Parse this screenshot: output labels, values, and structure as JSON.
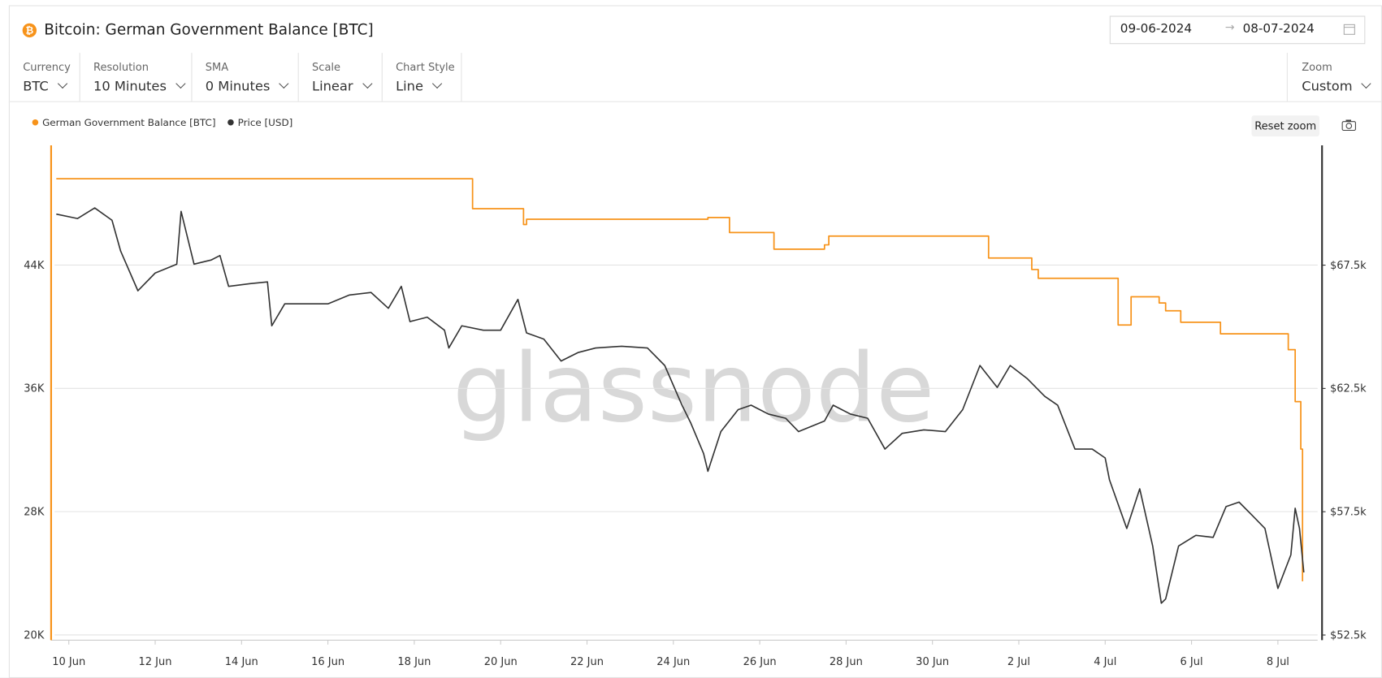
{
  "header": {
    "title": "Bitcoin: German Government Balance [BTC]",
    "date_from": "09-06-2024",
    "date_to": "08-07-2024"
  },
  "controls": [
    {
      "label": "Currency",
      "value": "BTC"
    },
    {
      "label": "Resolution",
      "value": "10 Minutes"
    },
    {
      "label": "SMA",
      "value": "0 Minutes"
    },
    {
      "label": "Scale",
      "value": "Linear"
    },
    {
      "label": "Chart Style",
      "value": "Line"
    }
  ],
  "zoom": {
    "label": "Zoom",
    "value": "Custom"
  },
  "reset_zoom": "Reset zoom",
  "watermark": "glassnode",
  "chart_data": {
    "type": "line",
    "xlim": [
      9.59,
      38.92
    ],
    "xticks": [
      {
        "value": 10,
        "label": "10 Jun"
      },
      {
        "value": 12,
        "label": "12 Jun"
      },
      {
        "value": 14,
        "label": "14 Jun"
      },
      {
        "value": 16,
        "label": "16 Jun"
      },
      {
        "value": 18,
        "label": "18 Jun"
      },
      {
        "value": 20,
        "label": "20 Jun"
      },
      {
        "value": 22,
        "label": "22 Jun"
      },
      {
        "value": 24,
        "label": "24 Jun"
      },
      {
        "value": 26,
        "label": "26 Jun"
      },
      {
        "value": 28,
        "label": "28 Jun"
      },
      {
        "value": 30,
        "label": "30 Jun"
      },
      {
        "value": 32,
        "label": "2 Jul"
      },
      {
        "value": 34,
        "label": "4 Jul"
      },
      {
        "value": 36,
        "label": "6 Jul"
      },
      {
        "value": 38,
        "label": "8 Jul"
      }
    ],
    "ylim": [
      19660,
      51770
    ],
    "yticks": [
      {
        "value": 20000,
        "label": "20K"
      },
      {
        "value": 28000,
        "label": "28K"
      },
      {
        "value": 36000,
        "label": "36K"
      },
      {
        "value": 44000,
        "label": "44K"
      }
    ],
    "y2lim": [
      52290,
      72360
    ],
    "y2ticks": [
      {
        "value": 52500,
        "label": "$52.5k"
      },
      {
        "value": 57500,
        "label": "$57.5k"
      },
      {
        "value": 62500,
        "label": "$62.5k"
      },
      {
        "value": 67500,
        "label": "$67.5k"
      }
    ],
    "grid": true,
    "series": [
      {
        "name": "German Government Balance [BTC]",
        "color": "#f7931a",
        "step": true,
        "x": [
          9.71,
          19.35,
          20.53,
          20.6,
          24.8,
          25.3,
          26.33,
          27.5,
          27.6,
          31.3,
          32.3,
          32.45,
          34.3,
          34.6,
          35.25,
          35.4,
          35.75,
          36.67,
          38.24,
          38.4,
          38.53,
          38.57
        ],
        "values": [
          49600,
          47660,
          46630,
          46970,
          47085,
          46110,
          45030,
          45310,
          45880,
          44460,
          43710,
          43140,
          40110,
          41940,
          41540,
          41030,
          40290,
          39540,
          38510,
          35140,
          32060,
          23480
        ]
      },
      {
        "name": "Price [USD]",
        "color": "#333333",
        "axis": "y2",
        "x": [
          9.71,
          10.2,
          10.6,
          11.0,
          11.2,
          11.6,
          12.0,
          12.5,
          12.6,
          12.9,
          13.3,
          13.5,
          13.7,
          14.2,
          14.6,
          14.7,
          15.0,
          15.5,
          16.0,
          16.5,
          17.0,
          17.4,
          17.7,
          17.9,
          18.3,
          18.7,
          18.8,
          19.1,
          19.6,
          20.0,
          20.4,
          20.6,
          21.0,
          21.4,
          21.8,
          22.2,
          22.8,
          23.4,
          23.8,
          24.2,
          24.4,
          24.7,
          24.8,
          25.1,
          25.5,
          25.8,
          26.2,
          26.6,
          26.9,
          27.5,
          27.7,
          28.1,
          28.5,
          28.9,
          29.3,
          29.8,
          30.3,
          30.7,
          31.1,
          31.5,
          31.8,
          32.2,
          32.6,
          32.9,
          33.3,
          33.7,
          34.0,
          34.1,
          34.5,
          34.8,
          35.1,
          35.3,
          35.4,
          35.7,
          36.1,
          36.5,
          36.8,
          37.1,
          37.4,
          37.7,
          38.0,
          38.3,
          38.4,
          38.5,
          38.6
        ],
        "values": [
          69570,
          69390,
          69820,
          69320,
          68070,
          66460,
          67180,
          67540,
          69680,
          67540,
          67710,
          67890,
          66640,
          66750,
          66820,
          65040,
          65930,
          65930,
          65930,
          66290,
          66390,
          65750,
          66640,
          65210,
          65390,
          64860,
          64140,
          65040,
          64860,
          64860,
          66110,
          64750,
          64500,
          63610,
          63960,
          64140,
          64210,
          64140,
          63430,
          61820,
          61110,
          59860,
          59140,
          60750,
          61640,
          61820,
          61460,
          61290,
          60750,
          61180,
          61820,
          61460,
          61290,
          60040,
          60680,
          60820,
          60750,
          61640,
          63430,
          62540,
          63430,
          62890,
          62180,
          61820,
          60040,
          60040,
          59680,
          58790,
          56820,
          58430,
          56110,
          53790,
          53960,
          56110,
          56540,
          56460,
          57710,
          57890,
          57360,
          56820,
          54390,
          55750,
          57640,
          56820,
          55040
        ]
      }
    ]
  }
}
